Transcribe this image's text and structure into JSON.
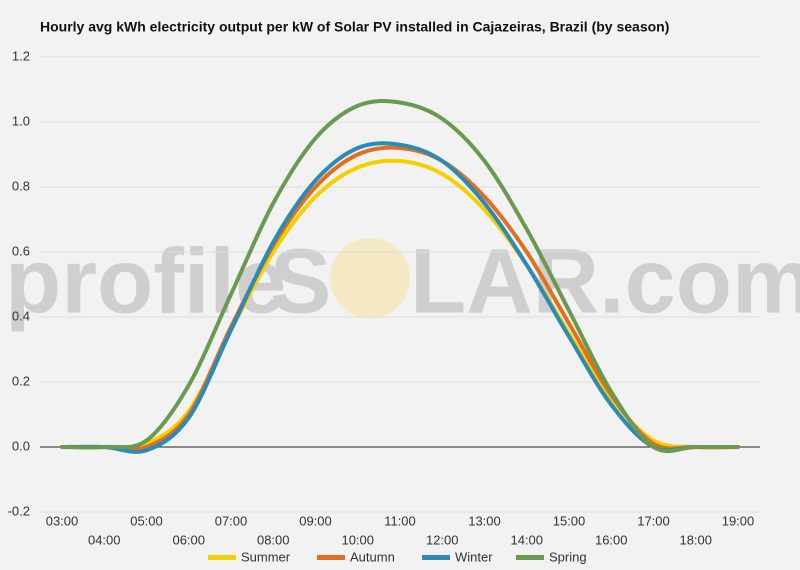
{
  "chart_data": {
    "type": "line",
    "title": "Hourly avg kWh electricity output per kW of Solar PV installed in Cajazeiras, Brazil (by season)",
    "watermark": [
      "profile",
      "S",
      "LAR.com"
    ],
    "categories": [
      "03:00",
      "04:00",
      "05:00",
      "06:00",
      "07:00",
      "08:00",
      "09:00",
      "10:00",
      "11:00",
      "12:00",
      "13:00",
      "14:00",
      "15:00",
      "16:00",
      "17:00",
      "18:00",
      "19:00"
    ],
    "series": [
      {
        "name": "Summer",
        "color": "#f5d000",
        "values": [
          0,
          0,
          0.01,
          0.11,
          0.36,
          0.6,
          0.77,
          0.86,
          0.88,
          0.84,
          0.73,
          0.56,
          0.35,
          0.15,
          0.02,
          0,
          0
        ]
      },
      {
        "name": "Autumn",
        "color": "#e07020",
        "values": [
          0,
          0,
          0,
          0.1,
          0.37,
          0.62,
          0.8,
          0.9,
          0.92,
          0.88,
          0.77,
          0.6,
          0.38,
          0.16,
          0.01,
          0,
          0
        ]
      },
      {
        "name": "Winter",
        "color": "#2a8ab8",
        "values": [
          0,
          0,
          -0.01,
          0.09,
          0.36,
          0.63,
          0.82,
          0.92,
          0.93,
          0.88,
          0.75,
          0.56,
          0.34,
          0.13,
          0,
          0,
          0
        ]
      },
      {
        "name": "Spring",
        "color": "#6a9a50",
        "values": [
          0,
          0,
          0.02,
          0.19,
          0.47,
          0.75,
          0.95,
          1.05,
          1.06,
          1.01,
          0.88,
          0.67,
          0.42,
          0.17,
          0,
          0,
          0
        ]
      }
    ],
    "ylim": [
      -0.2,
      1.2
    ],
    "yticks": [
      {
        "value": -0.2,
        "label": "-0.2"
      },
      {
        "value": 0,
        "label": "0.0"
      },
      0.2,
      0.4,
      0.6,
      0.8,
      {
        "value": 1,
        "label": "1.0"
      },
      1.2
    ],
    "grid": true
  }
}
